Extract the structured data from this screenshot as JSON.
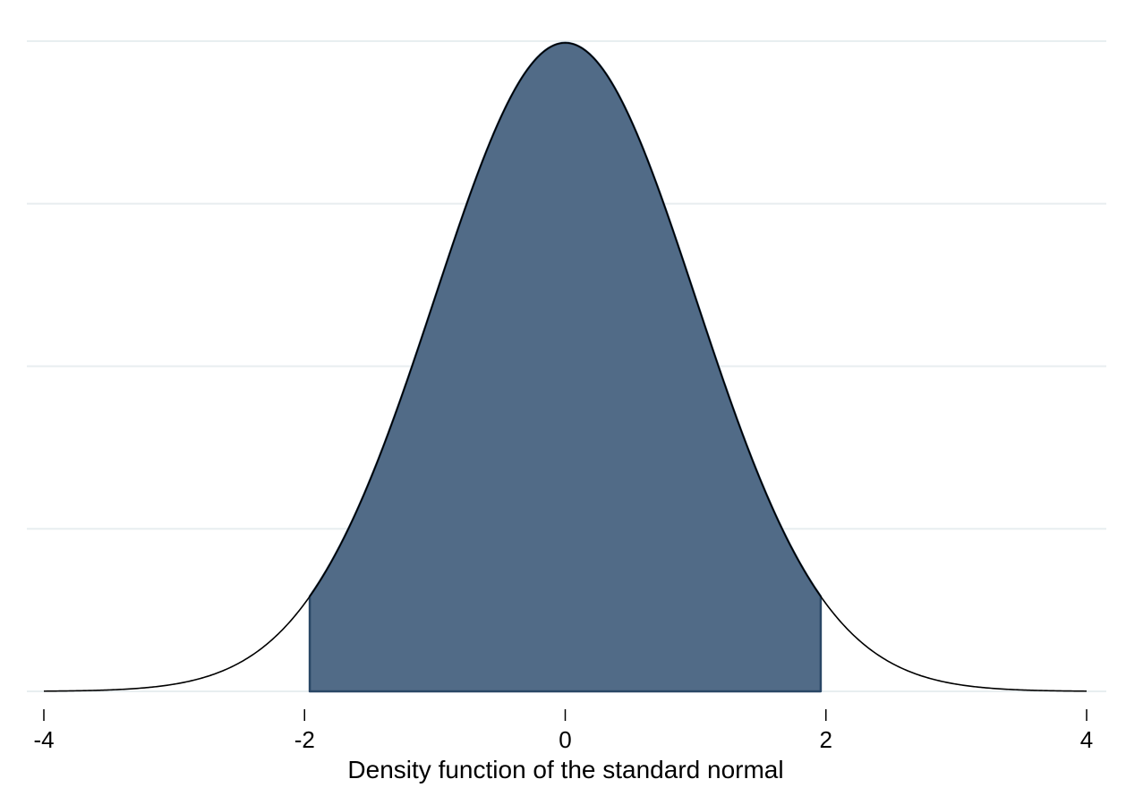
{
  "chart_data": {
    "type": "area",
    "title": "",
    "xlabel": "Density function of the standard normal",
    "ylabel": "",
    "xlim": [
      -4,
      4
    ],
    "ylim": [
      0,
      0.4
    ],
    "x_ticks": [
      -4,
      -2,
      0,
      2,
      4
    ],
    "x_tick_labels": [
      "-4",
      "-2",
      "0",
      "2",
      "4"
    ],
    "y_gridlines": [
      0,
      0.1,
      0.2,
      0.3,
      0.4
    ],
    "grid": true,
    "legend": "none",
    "series": [
      {
        "kind": "line",
        "function": "standard normal density",
        "x": [
          -4,
          -3.5,
          -3,
          -2.5,
          -2,
          -1.96,
          -1.5,
          -1,
          -0.5,
          0,
          0.5,
          1,
          1.5,
          1.96,
          2,
          2.5,
          3,
          3.5,
          4
        ],
        "y": [
          0.0001,
          0.0009,
          0.0044,
          0.0175,
          0.054,
          0.0584,
          0.1295,
          0.242,
          0.3521,
          0.3989,
          0.3521,
          0.242,
          0.1295,
          0.0584,
          0.054,
          0.0175,
          0.0044,
          0.0009,
          0.0001
        ]
      },
      {
        "kind": "shaded-area",
        "x_from": -1.96,
        "x_to": 1.96
      }
    ],
    "colors": {
      "fill": "#516b87",
      "fill_outline": "#2a4766",
      "curve": "#000000",
      "grid": "#e8eef0"
    }
  }
}
